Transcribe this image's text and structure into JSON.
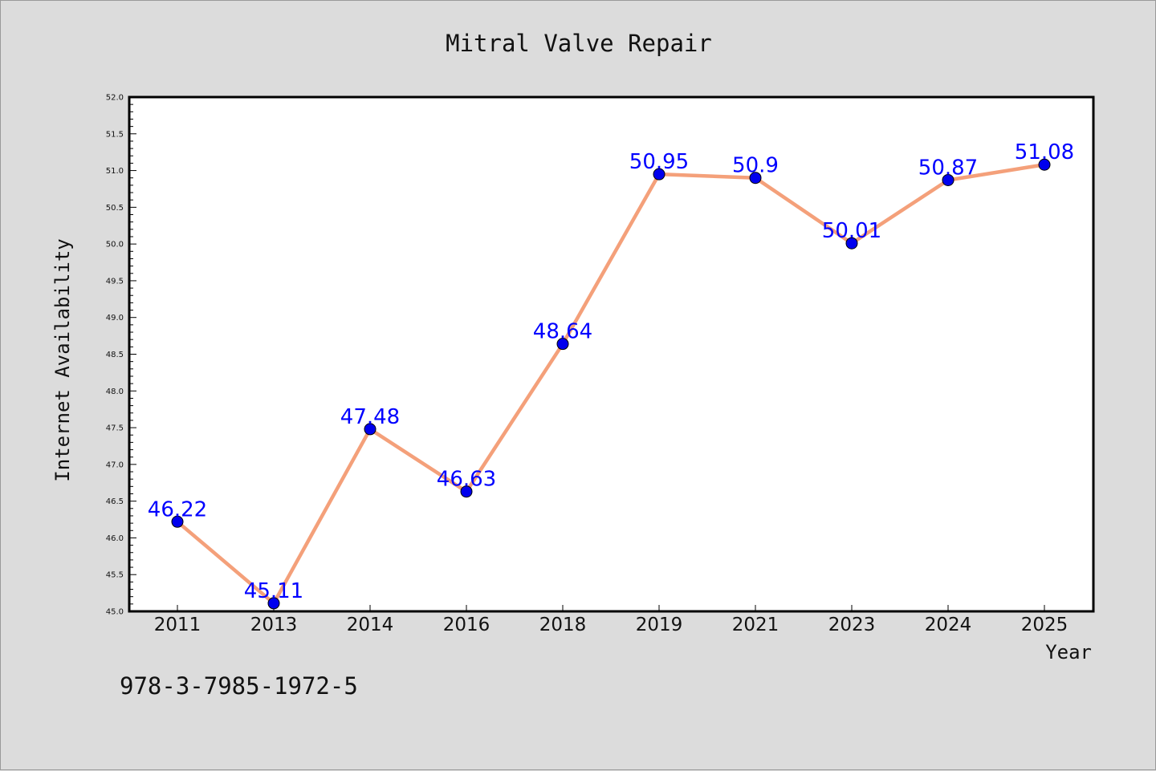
{
  "footer_code": "978-3-7985-1972-5",
  "colors": {
    "background": "#dcdcdc",
    "plot_background": "#ffffff",
    "line": "#f4a07a",
    "marker": "#0000ee",
    "data_label": "#0000ff"
  },
  "chart_data": {
    "type": "line",
    "title": "Mitral Valve Repair",
    "xlabel": "Year",
    "ylabel": "Internet Availability",
    "categories": [
      "2011",
      "2013",
      "2014",
      "2016",
      "2018",
      "2019",
      "2021",
      "2023",
      "2024",
      "2025"
    ],
    "series": [
      {
        "values": [
          46.22,
          45.11,
          47.48,
          46.63,
          48.64,
          50.95,
          50.9,
          50.01,
          50.87,
          51.08
        ],
        "labels": [
          "46.22",
          "45.11",
          "47.48",
          "46.63",
          "48.64",
          "50.95",
          "50.9",
          "50.01",
          "50.87",
          "51.08"
        ]
      }
    ],
    "ylim": [
      45.0,
      52.0
    ],
    "yticks": [
      "45.0",
      "45.5",
      "46.0",
      "46.5",
      "47.0",
      "47.5",
      "48.0",
      "48.5",
      "49.0",
      "49.5",
      "50.0",
      "50.5",
      "51.0",
      "51.5",
      "52.0"
    ],
    "grid": false,
    "legend": "none"
  }
}
